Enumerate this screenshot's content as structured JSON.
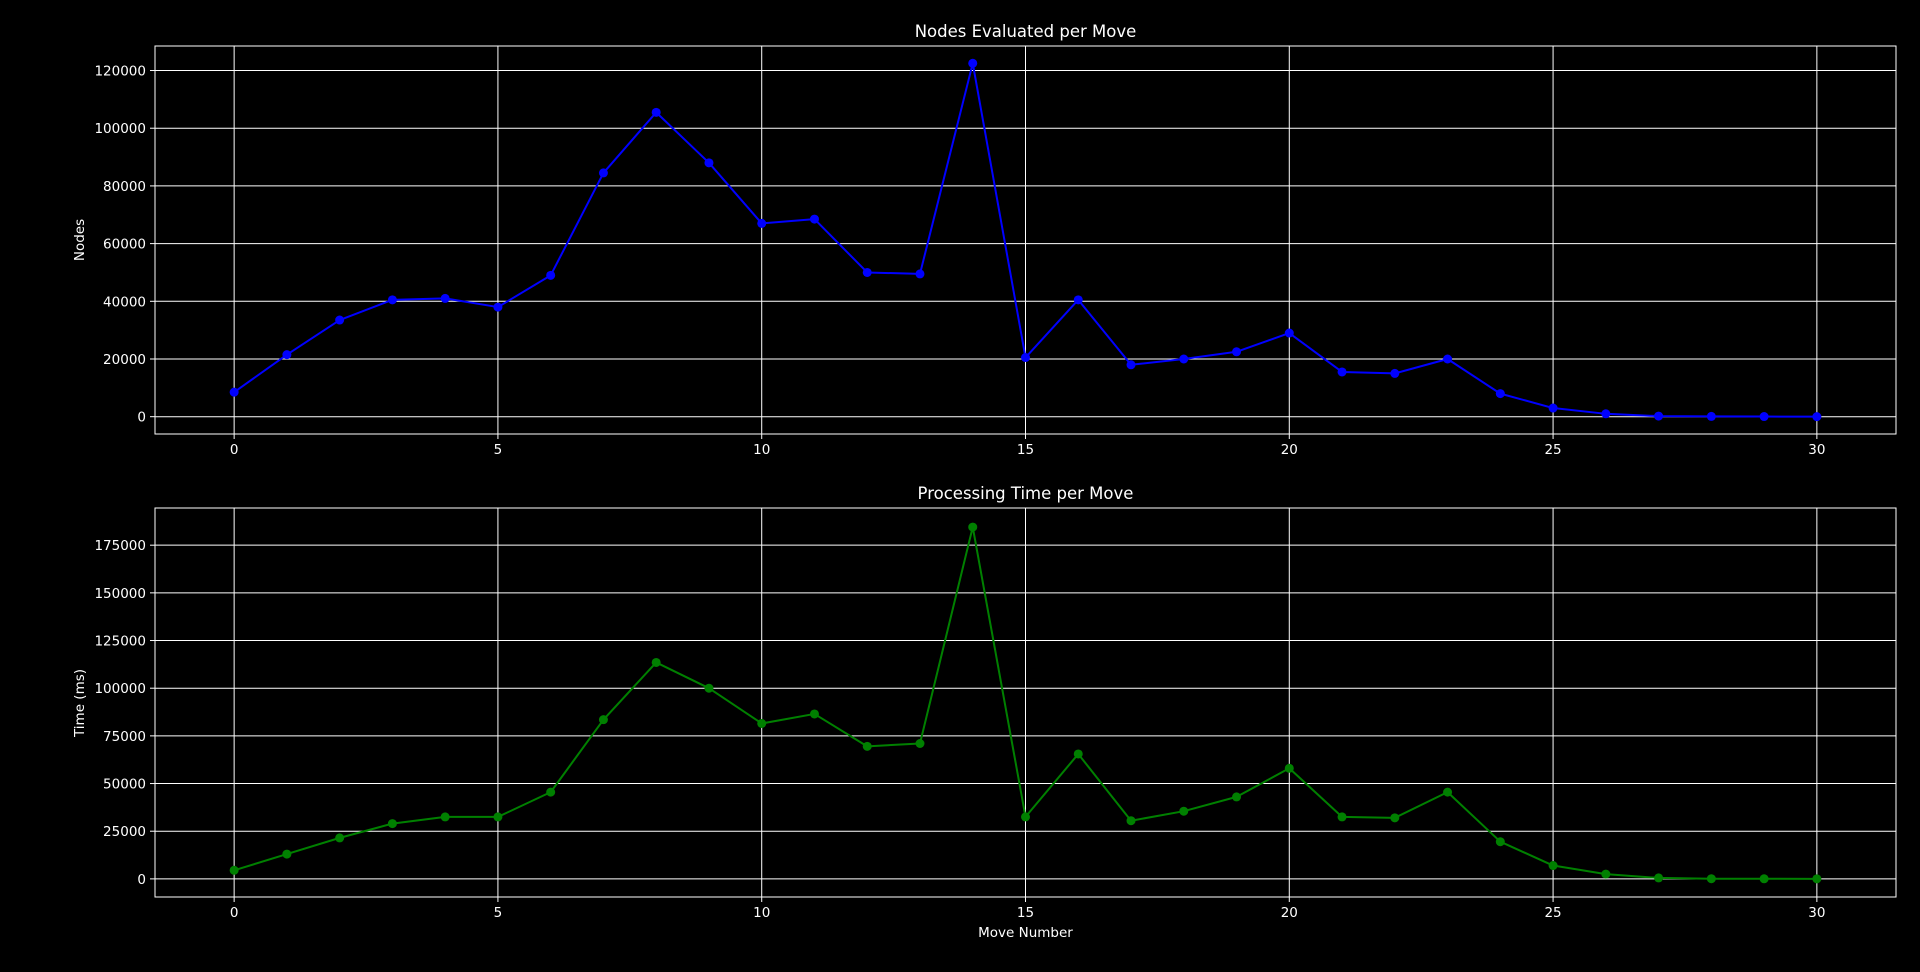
{
  "colors": {
    "background": "#000000",
    "axes_frame": "#ffffff",
    "grid": "#ffffff",
    "text": "#ffffff"
  },
  "chart_data": [
    {
      "type": "line",
      "title": "Nodes Evaluated per Move",
      "xlabel": "",
      "ylabel": "Nodes",
      "xlim": [
        -1.5,
        31.5
      ],
      "ylim": [
        -6000,
        128500
      ],
      "xticks": [
        0,
        5,
        10,
        15,
        20,
        25,
        30
      ],
      "yticks": [
        0,
        20000,
        40000,
        60000,
        80000,
        100000,
        120000
      ],
      "grid": true,
      "legend": "none",
      "series": [
        {
          "color": "#0000ff",
          "marker": "circle",
          "x": [
            0,
            1,
            2,
            3,
            4,
            5,
            6,
            7,
            8,
            9,
            10,
            11,
            12,
            13,
            14,
            15,
            16,
            17,
            18,
            19,
            20,
            21,
            22,
            23,
            24,
            25,
            26,
            27,
            28,
            29,
            30
          ],
          "y": [
            8500,
            21500,
            33500,
            40500,
            41000,
            38000,
            49000,
            84500,
            105500,
            88000,
            67000,
            68500,
            50000,
            49500,
            122500,
            20500,
            40500,
            18000,
            20000,
            22500,
            29000,
            15500,
            15000,
            20000,
            8000,
            3000,
            1000,
            200,
            100,
            50,
            20
          ]
        }
      ]
    },
    {
      "type": "line",
      "title": "Processing Time per Move",
      "xlabel": "Move Number",
      "ylabel": "Time (ms)",
      "xlim": [
        -1.5,
        31.5
      ],
      "ylim": [
        -9500,
        194500
      ],
      "xticks": [
        0,
        5,
        10,
        15,
        20,
        25,
        30
      ],
      "yticks": [
        0,
        25000,
        50000,
        75000,
        100000,
        125000,
        150000,
        175000
      ],
      "grid": true,
      "legend": "none",
      "series": [
        {
          "color": "#008000",
          "marker": "circle",
          "x": [
            0,
            1,
            2,
            3,
            4,
            5,
            6,
            7,
            8,
            9,
            10,
            11,
            12,
            13,
            14,
            15,
            16,
            17,
            18,
            19,
            20,
            21,
            22,
            23,
            24,
            25,
            26,
            27,
            28,
            29,
            30
          ],
          "y": [
            4500,
            13000,
            21500,
            29000,
            32500,
            32500,
            45500,
            83500,
            113500,
            100000,
            81500,
            86500,
            69500,
            71000,
            184500,
            32500,
            65500,
            30500,
            35500,
            43000,
            58000,
            32500,
            32000,
            45500,
            19500,
            7000,
            2500,
            500,
            100,
            50,
            20
          ]
        }
      ]
    }
  ]
}
